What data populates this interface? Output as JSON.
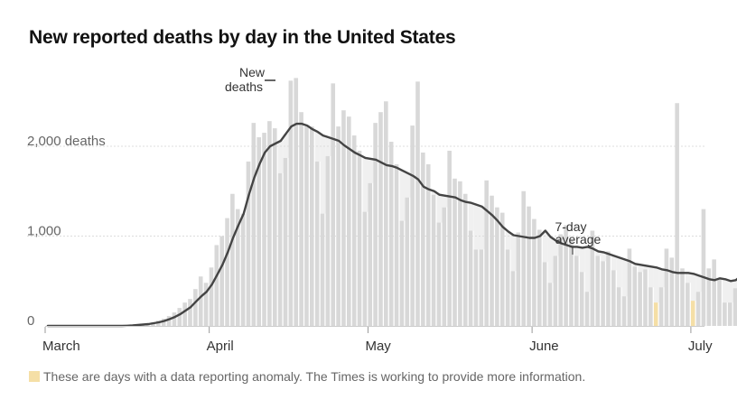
{
  "title": "New reported deaths by day in the United States",
  "footnote": "These are days with a data reporting anomaly. The Times is working to provide more information.",
  "colors": {
    "bar": "#d8d8d8",
    "band": "#f0f0f0",
    "anomaly": "#f5dfa6",
    "avg_line": "#444444",
    "grid": "#dddddd",
    "axis": "#cccccc"
  },
  "chart_data": {
    "type": "bar",
    "title": "New reported deaths by day in the United States",
    "x_start": "2020-03-01",
    "y_ticks": [
      {
        "value": 0,
        "label": "0"
      },
      {
        "value": 1000,
        "label": "1,000"
      },
      {
        "value": 2000,
        "label": "2,000 deaths"
      }
    ],
    "ylim": [
      0,
      2800
    ],
    "grid": true,
    "x_ticks": [
      {
        "date": "2020-03-01",
        "label": "March"
      },
      {
        "date": "2020-04-01",
        "label": "April"
      },
      {
        "date": "2020-05-01",
        "label": "May"
      },
      {
        "date": "2020-06-01",
        "label": "June"
      },
      {
        "date": "2020-07-01",
        "label": "July"
      }
    ],
    "series": [
      {
        "name": "New deaths",
        "values": [
          0,
          0,
          0,
          0,
          0,
          0,
          0,
          0,
          0,
          0,
          0,
          0,
          0,
          0,
          0,
          2,
          5,
          10,
          20,
          30,
          40,
          60,
          80,
          110,
          150,
          200,
          260,
          300,
          410,
          550,
          480,
          650,
          900,
          1000,
          1200,
          1470,
          1300,
          1250,
          1830,
          2260,
          2100,
          2150,
          2280,
          2200,
          1700,
          1870,
          2730,
          2760,
          2380,
          2220,
          2220,
          1830,
          1250,
          1890,
          2700,
          2220,
          2400,
          2330,
          2120,
          1950,
          1270,
          1590,
          2260,
          2380,
          2500,
          2050,
          1800,
          1170,
          1430,
          2230,
          2720,
          1930,
          1800,
          1460,
          1150,
          1320,
          1950,
          1640,
          1610,
          1470,
          1060,
          850,
          850,
          1620,
          1450,
          1320,
          1260,
          850,
          610,
          1040,
          1500,
          1330,
          1190,
          1070,
          710,
          480,
          780,
          1020,
          1120,
          950,
          780,
          600,
          380,
          1060,
          780,
          720,
          830,
          620,
          430,
          330,
          860,
          660,
          600,
          630,
          430,
          260,
          430,
          860,
          760,
          2480,
          640,
          480,
          280,
          380,
          1300,
          640,
          740,
          520,
          260,
          260,
          420,
          980
        ],
        "anomaly_days": [
          115,
          122
        ]
      },
      {
        "name": "7-day average",
        "values": [
          0,
          0,
          0,
          0,
          0,
          0,
          0,
          0,
          0,
          0,
          0,
          0,
          0,
          0,
          0,
          2,
          5,
          10,
          15,
          20,
          30,
          40,
          55,
          75,
          100,
          130,
          170,
          210,
          270,
          330,
          380,
          460,
          570,
          680,
          820,
          980,
          1120,
          1250,
          1460,
          1650,
          1800,
          1930,
          2000,
          2030,
          2060,
          2140,
          2220,
          2250,
          2250,
          2230,
          2190,
          2160,
          2120,
          2100,
          2080,
          2060,
          2010,
          1970,
          1930,
          1900,
          1870,
          1860,
          1850,
          1820,
          1790,
          1780,
          1760,
          1730,
          1700,
          1670,
          1630,
          1550,
          1520,
          1500,
          1460,
          1450,
          1440,
          1430,
          1400,
          1380,
          1370,
          1350,
          1330,
          1280,
          1230,
          1170,
          1100,
          1050,
          1010,
          1000,
          990,
          980,
          980,
          1000,
          1060,
          990,
          950,
          920,
          900,
          880,
          880,
          870,
          880,
          860,
          830,
          820,
          800,
          780,
          760,
          740,
          720,
          690,
          680,
          670,
          660,
          650,
          630,
          620,
          600,
          590,
          590,
          590,
          580,
          560,
          540,
          520,
          510,
          530,
          520,
          500,
          510,
          560
        ]
      }
    ],
    "annotations": [
      {
        "lines": [
          "New",
          "deaths"
        ]
      },
      {
        "lines": [
          "7-day",
          "average"
        ]
      }
    ]
  }
}
